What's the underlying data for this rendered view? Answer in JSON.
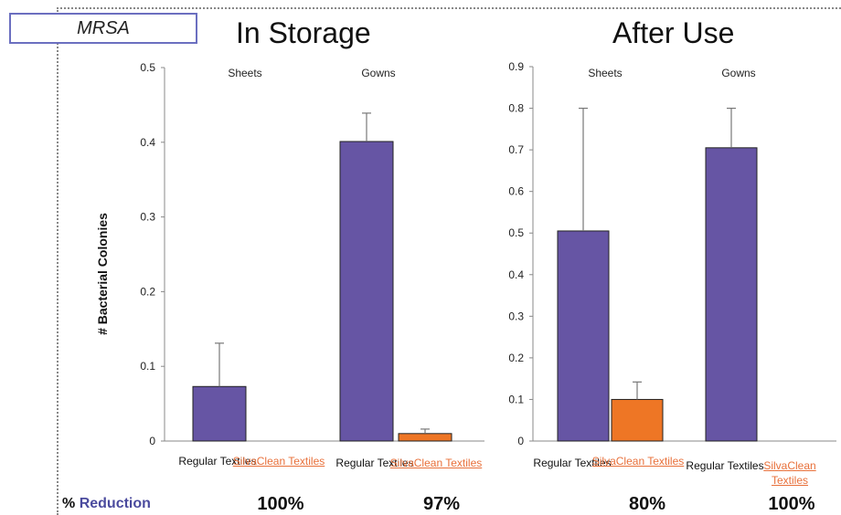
{
  "header": {
    "organism_label": "MRSA"
  },
  "y_axis_title": "# Bacterial Colonies",
  "reduction_row": {
    "label_symbol": "%",
    "label_text": "Reduction"
  },
  "chart_data": [
    {
      "type": "bar",
      "title": "In Storage",
      "ylim": [
        0,
        0.5
      ],
      "yticks": [
        "0",
        "0.1",
        "0.2",
        "0.3",
        "0.4",
        "0.5"
      ],
      "groups": [
        "Sheets",
        "Gowns"
      ],
      "categories": [
        "Regular Textiles",
        "SilvaClean Textiles"
      ],
      "series": [
        {
          "name": "Regular Textiles",
          "color": "#6655a4",
          "values": [
            0.073,
            0.401
          ],
          "error_upper": [
            0.131,
            0.439
          ]
        },
        {
          "name": "SilvaClean Textiles",
          "color": "#ee7625",
          "values": [
            0.0,
            0.01
          ],
          "error_upper": [
            0.0,
            0.016
          ]
        }
      ],
      "reduction": [
        "100%",
        "97%"
      ]
    },
    {
      "type": "bar",
      "title": "After Use",
      "ylim": [
        0,
        0.9
      ],
      "yticks": [
        "0",
        "0.1",
        "0.2",
        "0.3",
        "0.4",
        "0.5",
        "0.6",
        "0.7",
        "0.8",
        "0.9"
      ],
      "groups": [
        "Sheets",
        "Gowns"
      ],
      "categories": [
        "Regular Textiles",
        "SilvaClean Textiles"
      ],
      "series": [
        {
          "name": "Regular Textiles",
          "color": "#6655a4",
          "values": [
            0.505,
            0.705
          ],
          "error_upper": [
            0.8,
            0.8
          ]
        },
        {
          "name": "SilvaClean Textiles",
          "color": "#ee7625",
          "values": [
            0.1,
            0.0
          ],
          "error_upper": [
            0.142,
            0.0
          ]
        }
      ],
      "reduction": [
        "80%",
        "100%"
      ]
    }
  ]
}
